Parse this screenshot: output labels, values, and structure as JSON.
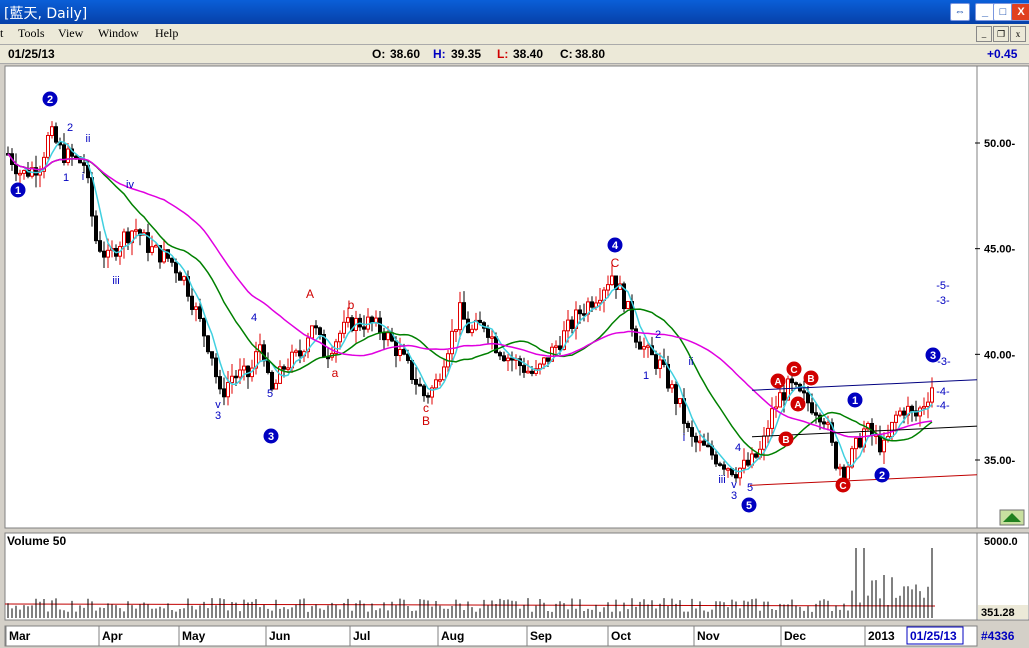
{
  "window": {
    "title": "[藍天, Daily]",
    "buttons": [
      "⇔",
      "_",
      "□",
      "X"
    ]
  },
  "menu": {
    "items": [
      "t",
      "Tools",
      "View",
      "Window",
      "Help"
    ]
  },
  "info": {
    "date": "01/25/13",
    "open_label": "O:",
    "open": "38.60",
    "high_label": "H:",
    "high": "39.35",
    "low_label": "L:",
    "low": "38.40",
    "close_label": "C:",
    "close": "38.80",
    "change": "+0.45"
  },
  "chart_data": {
    "type": "candlestick",
    "price_axis": {
      "ticks": [
        "50.00-",
        "45.00-",
        "40.00-",
        "35.00-"
      ],
      "range": [
        32.0,
        53.0
      ]
    },
    "volume_axis": {
      "label": "Volume 50",
      "top_tick": "5000.0",
      "current": "351.28"
    },
    "x_labels": [
      "Mar",
      "Apr",
      "May",
      "Jun",
      "Jul",
      "Aug",
      "Sep",
      "Oct",
      "Nov",
      "Dec",
      "2013"
    ],
    "current_date": "01/25/13",
    "record_count": "#4336",
    "colors": {
      "up": "#e00000",
      "down": "#000000",
      "ma_short": "#40d0e0",
      "ma_mid": "#008000",
      "ma_long": "#e000e0",
      "wave_circle": "#0000c0",
      "wave_red": "#d00000"
    },
    "wave_labels": {
      "circled_blue": [
        "1",
        "2",
        "3",
        "4",
        "5",
        "1",
        "2",
        "3"
      ],
      "circled_red": [
        "C",
        "B",
        "A",
        "A",
        "B",
        "C"
      ],
      "blue_text": [
        "2",
        "ii",
        "1",
        "i",
        "iv",
        "iii",
        "4",
        "v",
        "3",
        "5",
        "2",
        "1",
        "ii",
        "i",
        "4",
        "iii",
        "v",
        "3",
        "5",
        "-5-",
        "-3-",
        "-3-",
        "-4-",
        "-4-"
      ],
      "red_text": [
        "A",
        "b",
        "a",
        "c",
        "B",
        "C"
      ]
    }
  }
}
